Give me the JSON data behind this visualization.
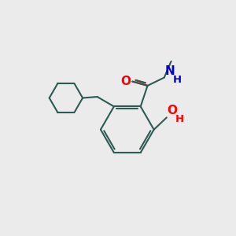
{
  "bg_color": "#ebebeb",
  "bond_color": "#2d5a52",
  "bond_width": 1.5,
  "atom_colors": {
    "O": "#ff0000",
    "N": "#0000cc",
    "C": "#2d5a52"
  },
  "font_size_atom": 11,
  "font_size_h": 9.5,
  "font_size_me": 10
}
